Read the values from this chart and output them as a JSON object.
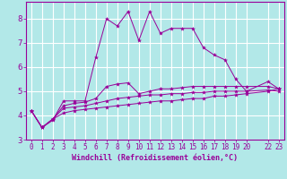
{
  "title": "",
  "xlabel": "Windchill (Refroidissement éolien,°C)",
  "ylabel": "",
  "bg_color": "#b2e8e8",
  "grid_color": "#ffffff",
  "line_color": "#990099",
  "xlim": [
    -0.5,
    23.5
  ],
  "ylim": [
    3.0,
    8.7
  ],
  "yticks": [
    3,
    4,
    5,
    6,
    7,
    8
  ],
  "series": [
    [
      4.2,
      3.5,
      3.8,
      4.6,
      4.6,
      4.6,
      6.4,
      8.0,
      7.7,
      8.3,
      7.1,
      8.3,
      7.4,
      7.6,
      7.6,
      7.6,
      6.8,
      6.5,
      6.3,
      5.5,
      5.0,
      5.4,
      5.1
    ],
    [
      4.2,
      3.5,
      3.85,
      4.4,
      4.5,
      4.55,
      4.7,
      5.2,
      5.3,
      5.35,
      4.9,
      5.0,
      5.1,
      5.1,
      5.15,
      5.2,
      5.2,
      5.2,
      5.2,
      5.2,
      5.2,
      5.2,
      5.1
    ],
    [
      4.2,
      3.5,
      3.85,
      4.3,
      4.35,
      4.4,
      4.5,
      4.6,
      4.7,
      4.75,
      4.8,
      4.85,
      4.85,
      4.9,
      4.9,
      4.95,
      4.95,
      5.0,
      5.0,
      5.0,
      5.0,
      5.05,
      5.0
    ],
    [
      4.2,
      3.5,
      3.85,
      4.1,
      4.2,
      4.25,
      4.3,
      4.35,
      4.4,
      4.45,
      4.5,
      4.55,
      4.6,
      4.6,
      4.65,
      4.7,
      4.7,
      4.8,
      4.8,
      4.85,
      4.9,
      5.0,
      5.1
    ]
  ],
  "x_vals": [
    0,
    1,
    2,
    3,
    4,
    5,
    6,
    7,
    8,
    9,
    10,
    11,
    12,
    13,
    14,
    15,
    16,
    17,
    18,
    19,
    20,
    22,
    23
  ],
  "xtick_labels": [
    "0",
    "1",
    "2",
    "3",
    "4",
    "5",
    "6",
    "7",
    "8",
    "9",
    "10",
    "11",
    "12",
    "13",
    "14",
    "15",
    "16",
    "17",
    "18",
    "19",
    "20",
    "22",
    "23"
  ],
  "ytick_labels": [
    "3",
    "4",
    "5",
    "6",
    "7",
    "8"
  ],
  "tick_fontsize": 5.5,
  "xlabel_fontsize": 6.0
}
